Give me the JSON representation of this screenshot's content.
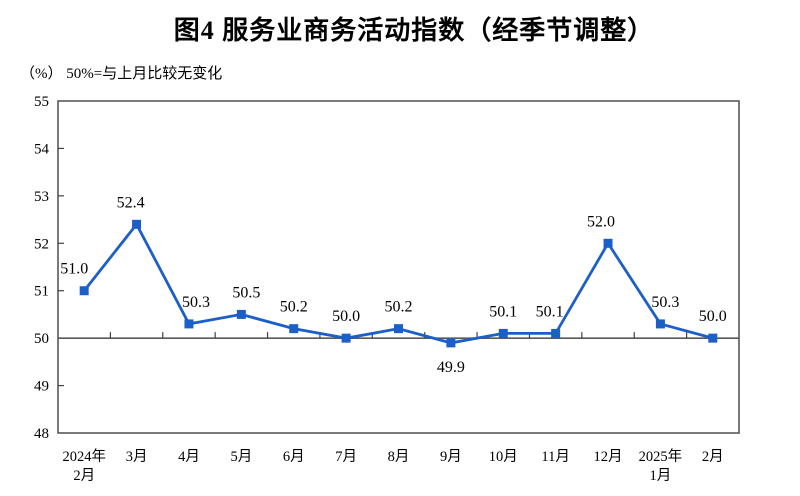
{
  "chart_data": {
    "type": "line",
    "title": "图4  服务业商务活动指数（经季节调整）",
    "unit_note": "（%） 50%=与上月比较无变化",
    "categories": [
      "2024年\n2月",
      "3月",
      "4月",
      "5月",
      "6月",
      "7月",
      "8月",
      "9月",
      "10月",
      "11月",
      "12月",
      "2025年\n1月",
      "2月"
    ],
    "values": [
      51.0,
      52.4,
      50.3,
      50.5,
      50.2,
      50.0,
      50.2,
      49.9,
      50.1,
      50.1,
      52.0,
      50.3,
      50.0
    ],
    "data_labels": [
      "51.0",
      "52.4",
      "50.3",
      "50.5",
      "50.2",
      "50.0",
      "50.2",
      "49.9",
      "50.1",
      "50.1",
      "52.0",
      "50.3",
      "50.0"
    ],
    "label_positions": [
      "above",
      "above",
      "above",
      "above",
      "above",
      "above",
      "above",
      "below",
      "above",
      "above",
      "above",
      "above",
      "above"
    ],
    "label_dx": [
      -10,
      -6,
      7,
      5,
      0,
      0,
      0,
      0,
      0,
      -6,
      -7,
      5,
      0
    ],
    "ylim": [
      48,
      55
    ],
    "yticks": [
      48,
      49,
      50,
      51,
      52,
      53,
      54,
      55
    ],
    "reference_line_y": 50,
    "grid": false,
    "legend": false,
    "line_color": "#1C5FC8",
    "axis_color": "#595959",
    "tick_color": "#404040",
    "text_color": "#000000"
  }
}
